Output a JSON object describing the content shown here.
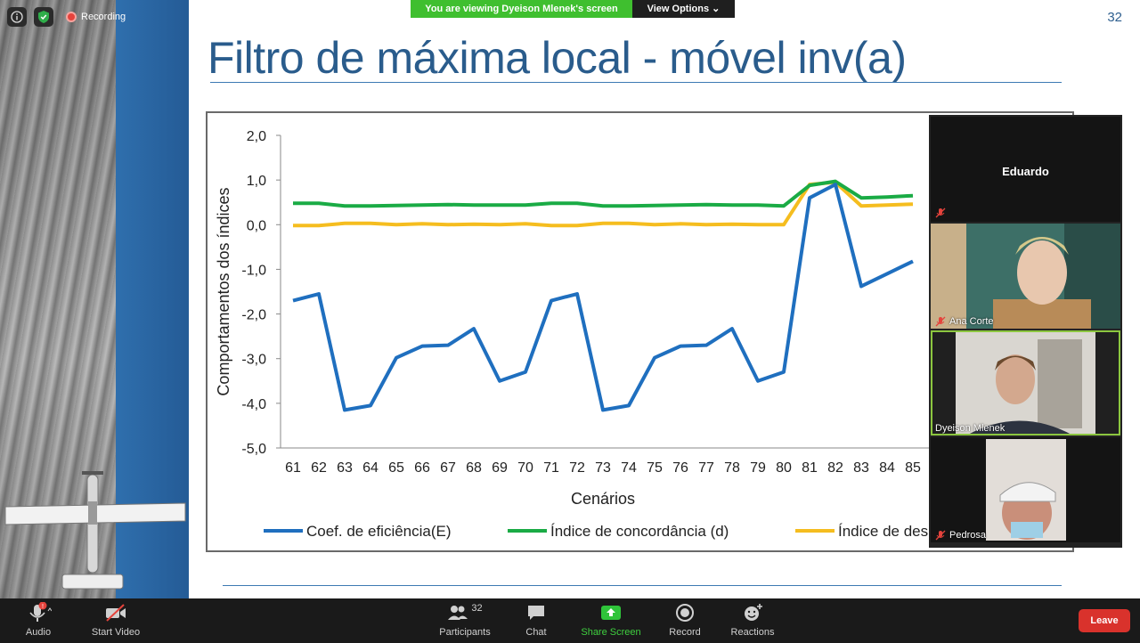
{
  "banner": {
    "text": "You are viewing Dyeison Mlenek's screen",
    "view_options": "View Options"
  },
  "status": {
    "recording": "Recording"
  },
  "slide": {
    "number": "32",
    "title": "Filtro de máxima local  - móvel inv(a)"
  },
  "chart_data": {
    "type": "line",
    "ylabel": "Comportamentos dos índices",
    "xlabel": "Cenários",
    "ylim": [
      -5,
      2
    ],
    "yticks": [
      "2,0",
      "1,0",
      "0,0",
      "-1,0",
      "-2,0",
      "-3,0",
      "-4,0",
      "-5,0"
    ],
    "categories": [
      "61",
      "62",
      "63",
      "64",
      "65",
      "66",
      "67",
      "68",
      "69",
      "70",
      "71",
      "72",
      "73",
      "74",
      "75",
      "76",
      "77",
      "78",
      "79",
      "80",
      "81",
      "82",
      "83",
      "84",
      "85"
    ],
    "series": [
      {
        "name": "Coef. de eficiência(E)",
        "color": "#1f6fbf",
        "values": [
          -1.7,
          -1.55,
          -4.15,
          -4.05,
          -2.98,
          -2.72,
          -2.7,
          -2.33,
          -3.5,
          -3.3,
          -1.7,
          -1.55,
          -4.15,
          -4.05,
          -2.98,
          -2.72,
          -2.7,
          -2.33,
          -3.5,
          -3.3,
          0.6,
          0.9,
          -1.38,
          -1.1,
          -0.82
        ]
      },
      {
        "name": "Índice de concordância (d)",
        "color": "#1aab45",
        "values": [
          0.48,
          0.48,
          0.42,
          0.42,
          0.43,
          0.44,
          0.45,
          0.44,
          0.44,
          0.44,
          0.48,
          0.48,
          0.42,
          0.42,
          0.43,
          0.44,
          0.45,
          0.44,
          0.44,
          0.42,
          0.88,
          0.97,
          0.6,
          0.62,
          0.65
        ]
      },
      {
        "name": "Índice de des",
        "color": "#f5bd1f",
        "values": [
          -0.02,
          -0.02,
          0.03,
          0.03,
          0.0,
          0.02,
          0.0,
          0.01,
          0.0,
          0.02,
          -0.02,
          -0.02,
          0.03,
          0.03,
          0.0,
          0.02,
          0.0,
          0.01,
          0.0,
          0.0,
          0.9,
          0.95,
          0.42,
          0.44,
          0.46
        ]
      }
    ]
  },
  "gallery": [
    {
      "name": "Eduardo",
      "video": false
    },
    {
      "name": "Ana Corte",
      "video": true
    },
    {
      "name": "Dyeison Mlenek",
      "video": true
    },
    {
      "name": "Pedrosa",
      "video": true
    }
  ],
  "toolbar": {
    "audio": "Audio",
    "start_video": "Start Video",
    "participants": "Participants",
    "participants_count": "32",
    "chat": "Chat",
    "share_screen": "Share Screen",
    "record": "Record",
    "reactions": "Reactions",
    "leave": "Leave"
  }
}
